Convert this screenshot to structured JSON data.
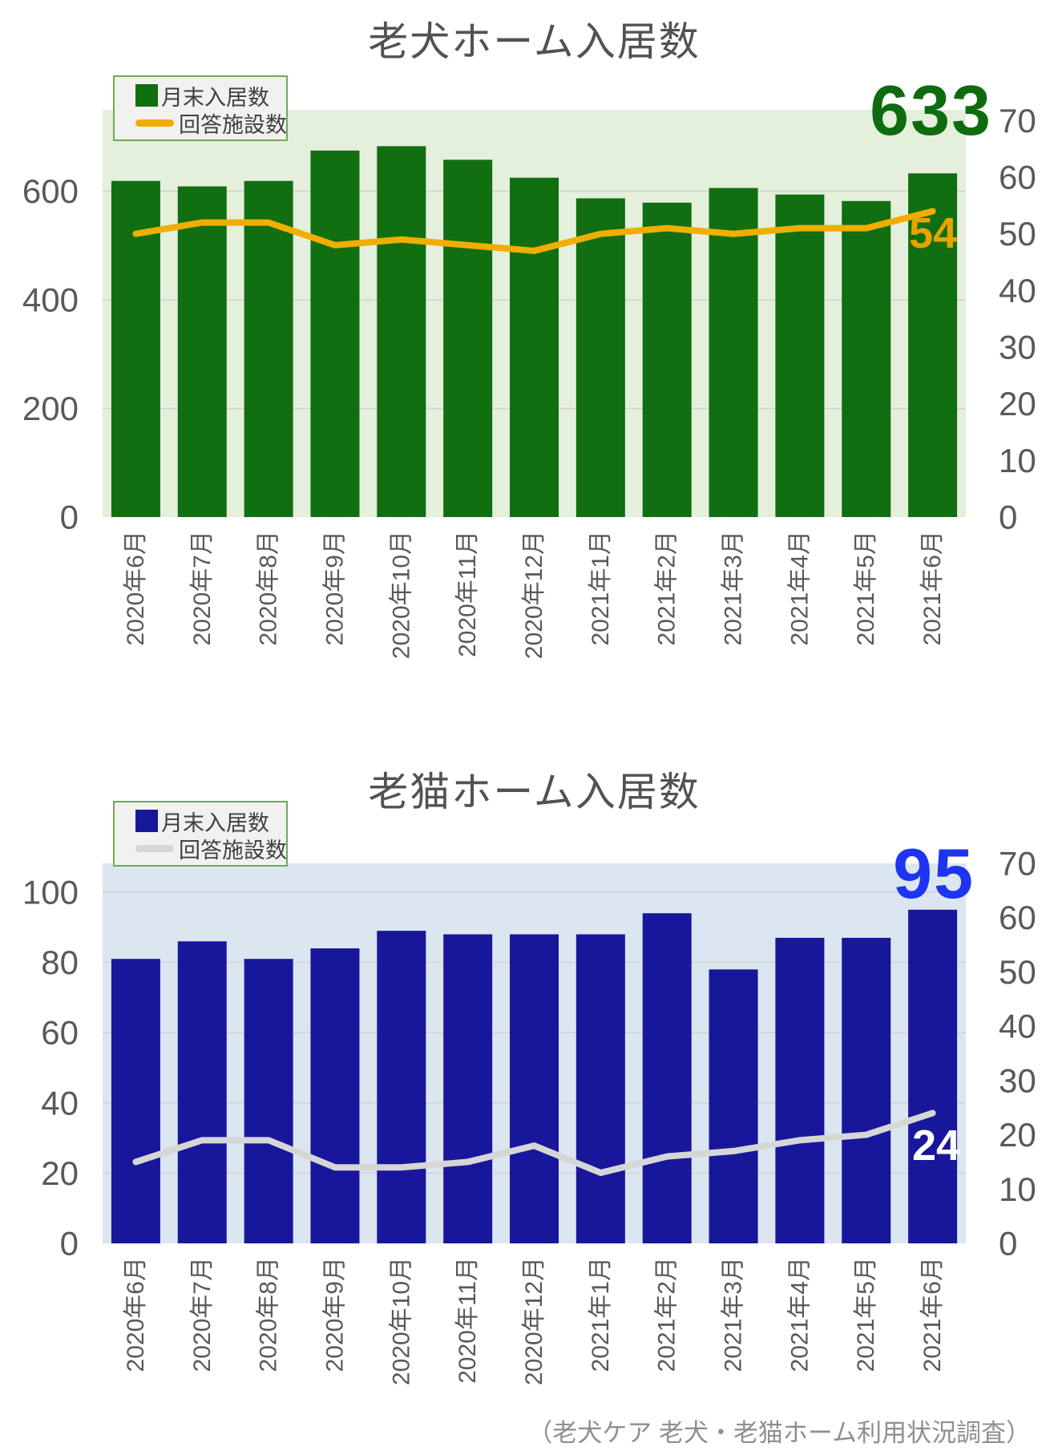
{
  "page": {
    "footer": "（老犬ケア 老犬・老猫ホーム利用状況調査）"
  },
  "chart_data": [
    {
      "type": "bar+line",
      "title": "老犬ホーム入居数",
      "categories": [
        "2020年6月",
        "2020年7月",
        "2020年8月",
        "2020年9月",
        "2020年10月",
        "2020年11月",
        "2020年12月",
        "2021年1月",
        "2021年2月",
        "2021年3月",
        "2021年4月",
        "2021年5月",
        "2021年6月"
      ],
      "series": [
        {
          "name": "月末入居数",
          "type": "bar",
          "axis": "left",
          "color": "#116e11",
          "values": [
            619,
            609,
            619,
            675,
            683,
            658,
            625,
            587,
            579,
            606,
            594,
            582,
            633
          ]
        },
        {
          "name": "回答施設数",
          "type": "line",
          "axis": "right",
          "color": "#f0ae00",
          "values": [
            50,
            52,
            52,
            48,
            49,
            48,
            47,
            50,
            51,
            50,
            51,
            51,
            54
          ]
        }
      ],
      "left_axis": {
        "ticks": [
          0,
          200,
          400,
          600
        ],
        "top_value": 750
      },
      "right_axis": {
        "ticks": [
          0,
          10,
          20,
          30,
          40,
          50,
          60,
          70
        ],
        "top_value": 71.9
      },
      "grid": true,
      "legend_position": "top-left",
      "plot_bg": "#e4efdc",
      "annotations": {
        "bar_last": "633",
        "bar_last_color": "#0f6b0f",
        "line_last": "54",
        "line_last_color": "#e8a300"
      }
    },
    {
      "type": "bar+line",
      "title": "老猫ホーム入居数",
      "categories": [
        "2020年6月",
        "2020年7月",
        "2020年8月",
        "2020年9月",
        "2020年10月",
        "2020年11月",
        "2020年12月",
        "2021年1月",
        "2021年2月",
        "2021年3月",
        "2021年4月",
        "2021年5月",
        "2021年6月"
      ],
      "series": [
        {
          "name": "月末入居数",
          "type": "bar",
          "axis": "left",
          "color": "#18179b",
          "values": [
            81,
            86,
            81,
            84,
            89,
            88,
            88,
            88,
            94,
            78,
            87,
            87,
            95
          ]
        },
        {
          "name": "回答施設数",
          "type": "line",
          "axis": "right",
          "color": "#d6d6d6",
          "values": [
            15,
            19,
            19,
            14,
            14,
            15,
            18,
            13,
            16,
            17,
            19,
            20,
            24
          ]
        }
      ],
      "left_axis": {
        "ticks": [
          0,
          20,
          40,
          60,
          80,
          100
        ],
        "top_value": 108.2
      },
      "right_axis": {
        "ticks": [
          0,
          10,
          20,
          30,
          40,
          50,
          60,
          70
        ],
        "top_value": 70
      },
      "grid": true,
      "legend_position": "top-left",
      "plot_bg": "#dbe6f1",
      "annotations": {
        "bar_last": "95",
        "bar_last_color": "#1d34f2",
        "line_last": "24",
        "line_last_color": "#ffffff"
      }
    }
  ]
}
